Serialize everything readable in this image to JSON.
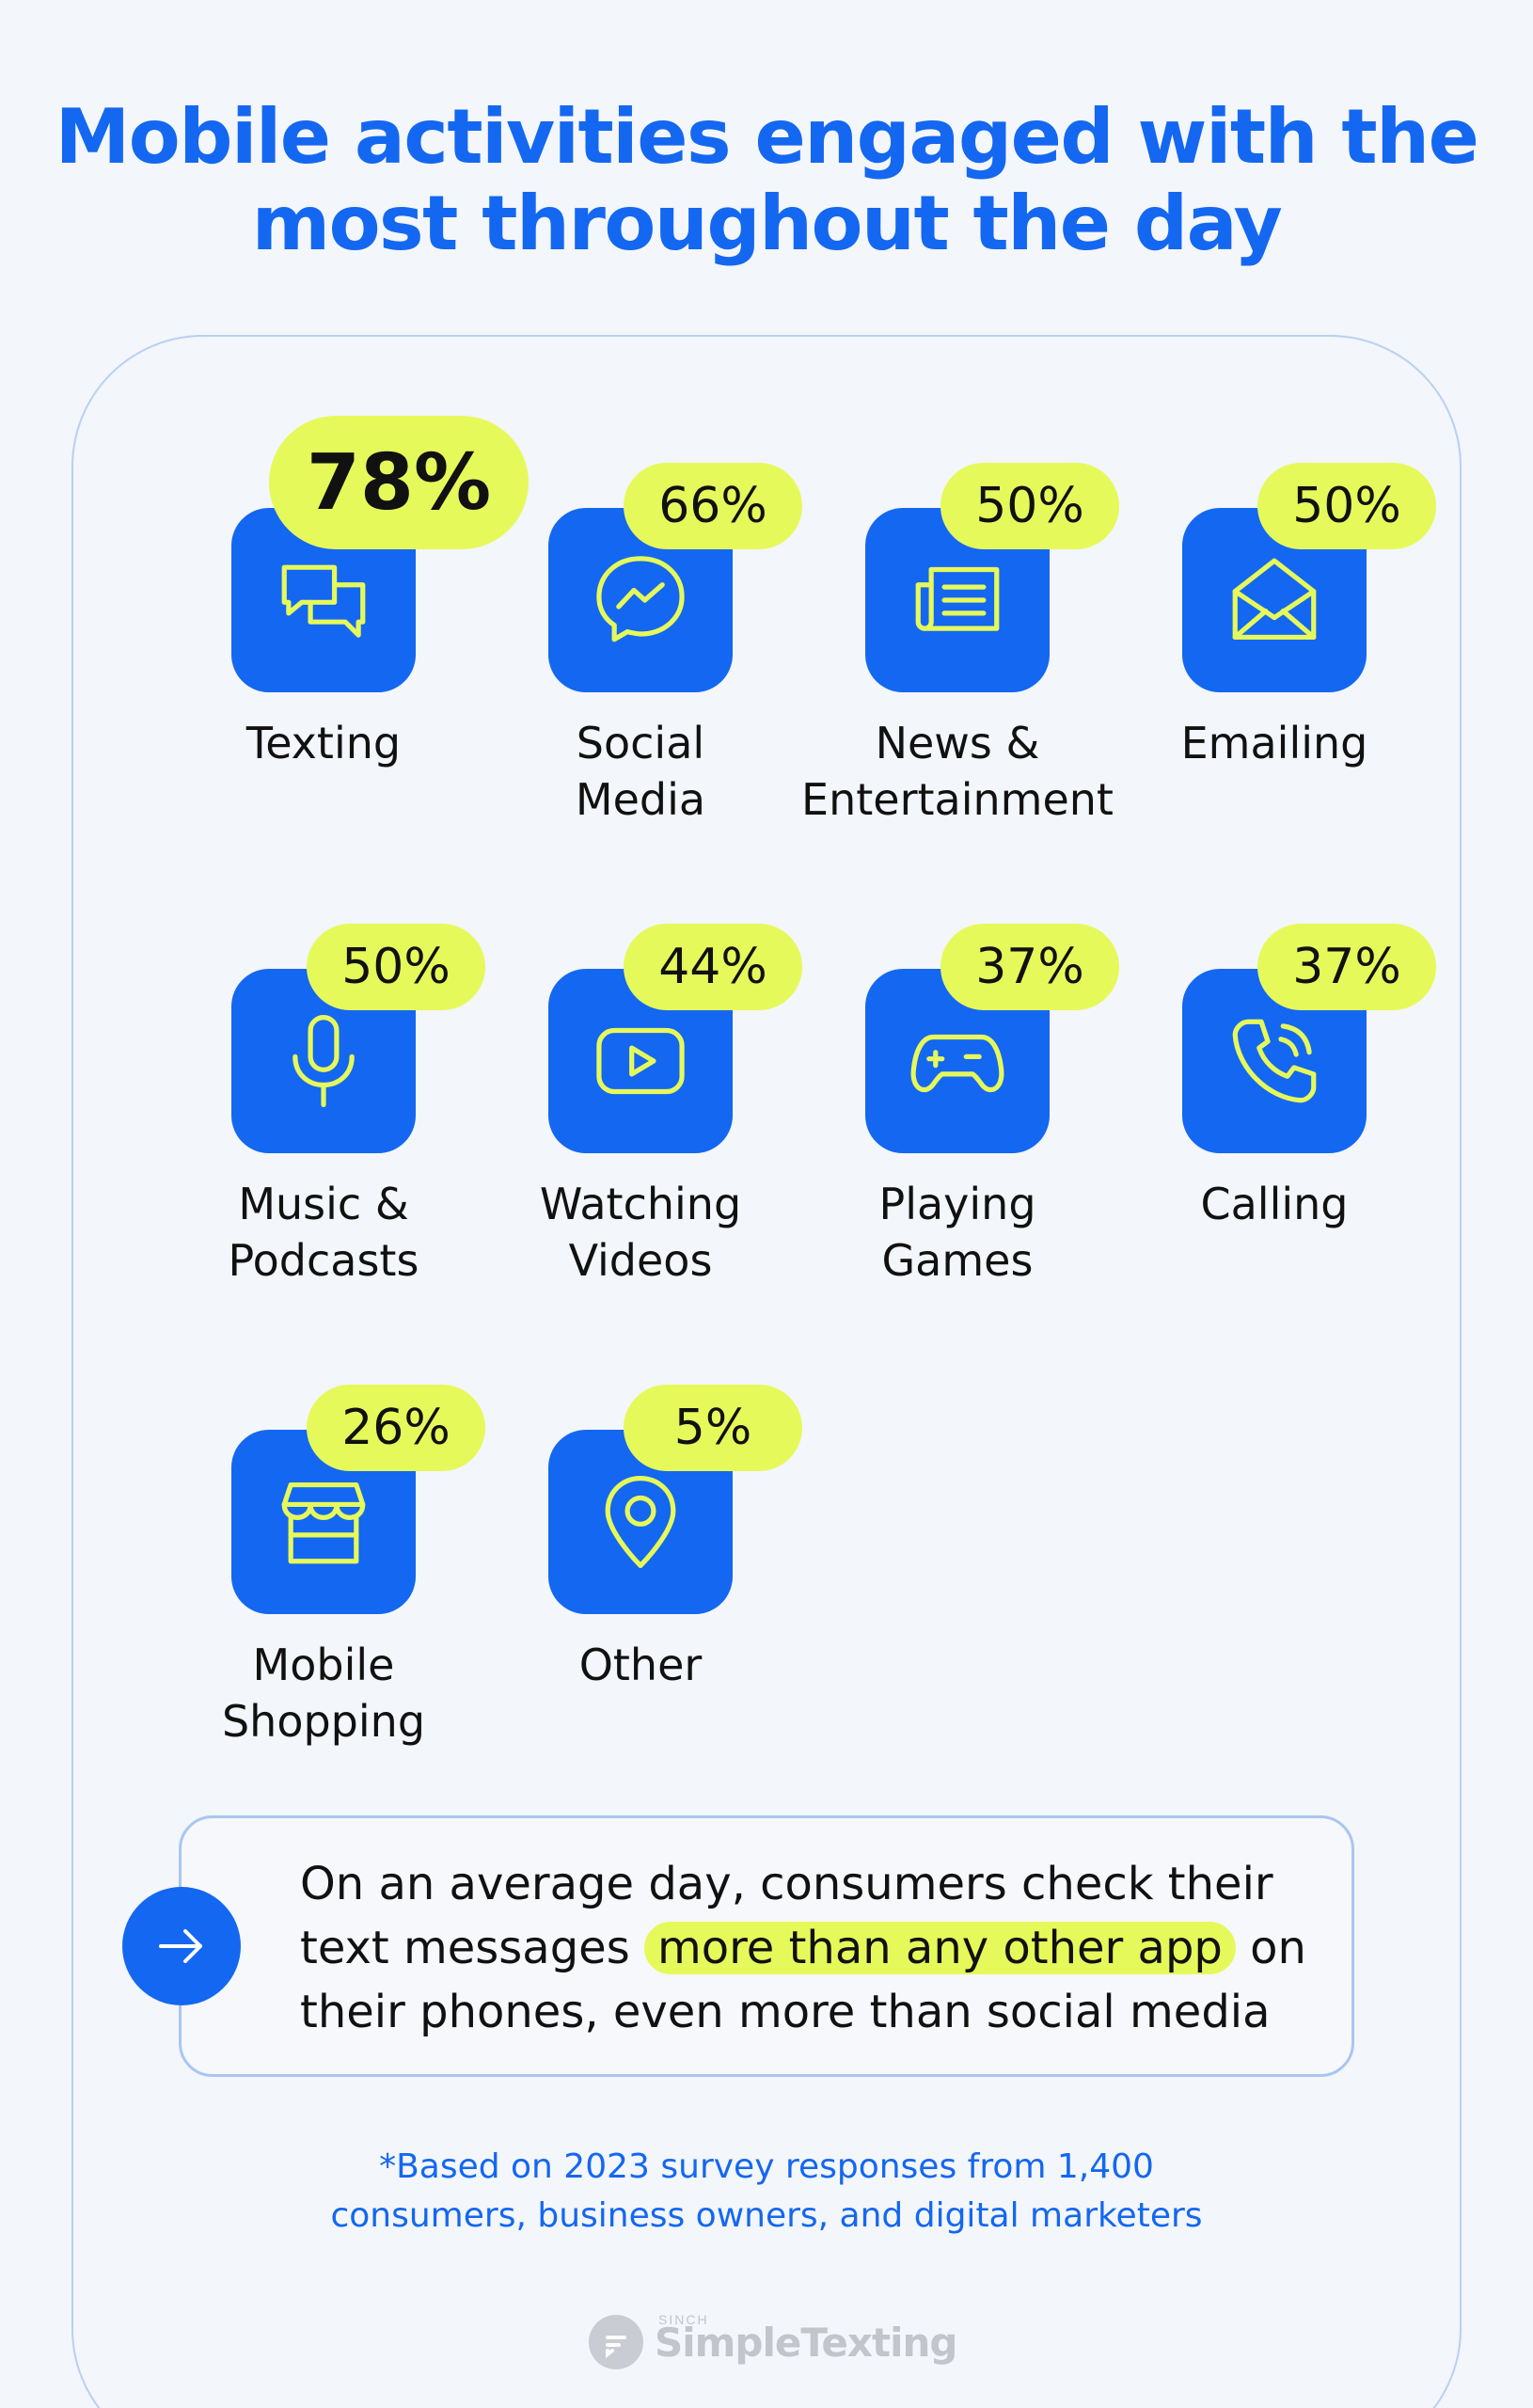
{
  "title": "Mobile activities engaged with the most throughout the day",
  "activities": [
    {
      "label": "Texting",
      "percent": "78%",
      "value": 78,
      "icon": "chat-bubbles-icon"
    },
    {
      "label": "Social\nMedia",
      "percent": "66%",
      "value": 66,
      "icon": "messenger-icon"
    },
    {
      "label": "News &\nEntertainment",
      "percent": "50%",
      "value": 50,
      "icon": "newspaper-icon"
    },
    {
      "label": "Emailing",
      "percent": "50%",
      "value": 50,
      "icon": "envelope-icon"
    },
    {
      "label": "Music &\nPodcasts",
      "percent": "50%",
      "value": 50,
      "icon": "microphone-icon"
    },
    {
      "label": "Watching\nVideos",
      "percent": "44%",
      "value": 44,
      "icon": "play-video-icon"
    },
    {
      "label": "Playing\nGames",
      "percent": "37%",
      "value": 37,
      "icon": "gamepad-icon"
    },
    {
      "label": "Calling",
      "percent": "37%",
      "value": 37,
      "icon": "phone-icon"
    },
    {
      "label": "Mobile\nShopping",
      "percent": "26%",
      "value": 26,
      "icon": "storefront-icon"
    },
    {
      "label": "Other",
      "percent": "5%",
      "value": 5,
      "icon": "location-pin-icon"
    }
  ],
  "callout": {
    "before": "On an average day, consumers check their text messages",
    "highlight": "more than any other app",
    "after": "on their phones, even more than social media"
  },
  "footnote": {
    "line1": "*Based on 2023 survey responses from 1,400",
    "line2": "consumers, business owners, and digital marketers"
  },
  "brand": {
    "super": "SINCH",
    "name": "SimpleTexting"
  },
  "colors": {
    "accent": "#1467f0",
    "highlight": "#e6f95b",
    "background": "#f3f6fa"
  }
}
